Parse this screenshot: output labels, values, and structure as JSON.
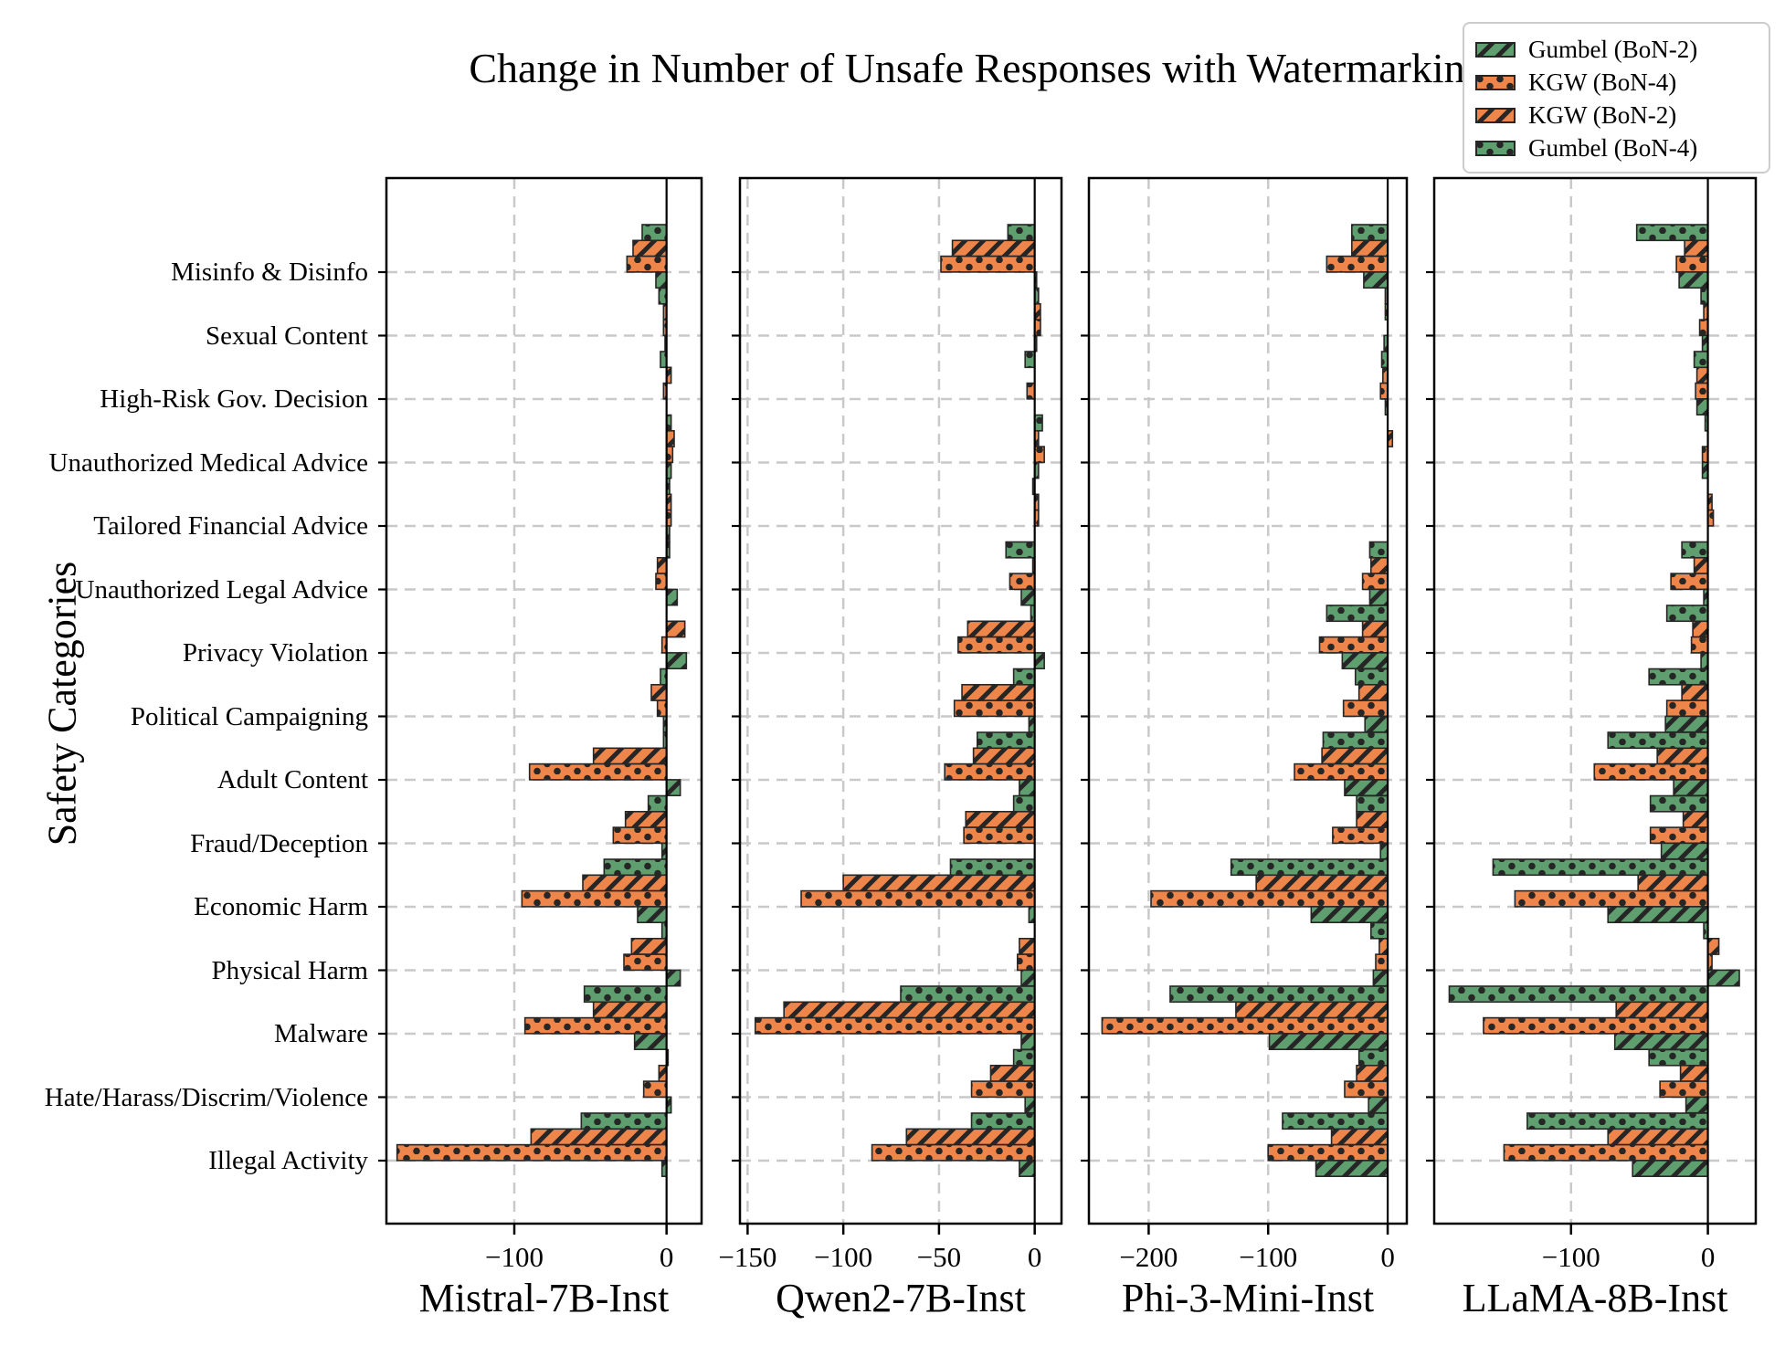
{
  "title_note": "all visible text lives here",
  "chart_data": {
    "type": "bar",
    "orientation": "horizontal",
    "title": "Change in Number of Unsafe Responses with Watermarking",
    "ylabel": "Safety Categories",
    "grid": true,
    "legend_position": "upper right",
    "categories": [
      "Misinfo & Disinfo",
      "Sexual Content",
      "High-Risk Gov. Decision",
      "Unauthorized Medical Advice",
      "Tailored Financial Advice",
      "Unauthorized Legal Advice",
      "Privacy Violation",
      "Political Campaigning",
      "Adult Content",
      "Fraud/Deception",
      "Economic Harm",
      "Physical Harm",
      "Malware",
      "Hate/Harass/Discrim/Violence",
      "Illegal Activity"
    ],
    "legend_items": [
      {
        "label": "Gumbel (BoN-2)",
        "color": "#5f9e6e",
        "hatch": "/"
      },
      {
        "label": "KGW (BoN-4)",
        "color": "#ee854a",
        "hatch": "."
      },
      {
        "label": "KGW (BoN-2)",
        "color": "#ee854a",
        "hatch": "/"
      },
      {
        "label": "Gumbel (BoN-4)",
        "color": "#5f9e6e",
        "hatch": "."
      }
    ],
    "series_draw_order": [
      "Gumbel (BoN-4)",
      "KGW (BoN-2)",
      "KGW (BoN-4)",
      "Gumbel (BoN-2)"
    ],
    "series_styles": {
      "Gumbel (BoN-4)": {
        "color": "#5f9e6e",
        "hatch": "."
      },
      "KGW (BoN-2)": {
        "color": "#ee854a",
        "hatch": "/"
      },
      "KGW (BoN-4)": {
        "color": "#ee854a",
        "hatch": "."
      },
      "Gumbel (BoN-2)": {
        "color": "#5f9e6e",
        "hatch": "/"
      }
    },
    "subplots": [
      {
        "model": "Mistral-7B-Inst",
        "xlim": [
          -184,
          23
        ],
        "xticks": [
          -100,
          0
        ],
        "xtick_labels": [
          "−100",
          "0"
        ],
        "series": {
          "Gumbel (BoN-4)": [
            -16,
            -5,
            -4,
            3,
            2,
            2,
            0,
            -4,
            -2,
            -12,
            -41,
            -3,
            -54,
            1,
            -56
          ],
          "KGW (BoN-2)": [
            -22,
            -2,
            3,
            5,
            3,
            -6,
            12,
            -10,
            -48,
            -27,
            -55,
            -23,
            -48,
            -5,
            -89
          ],
          "KGW (BoN-4)": [
            -26,
            -2,
            -2,
            4,
            3,
            -7,
            -3,
            -6,
            -90,
            -35,
            -95,
            -28,
            -93,
            -15,
            -177
          ],
          "Gumbel (BoN-2)": [
            -7,
            -1,
            0,
            3,
            2,
            7,
            13,
            -2,
            9,
            -3,
            -19,
            9,
            -21,
            3,
            -3
          ]
        }
      },
      {
        "model": "Qwen2-7B-Inst",
        "xlim": [
          -154,
          14
        ],
        "xticks": [
          -150,
          -100,
          -50,
          0
        ],
        "xtick_labels": [
          "−150",
          "−100",
          "−50",
          "0"
        ],
        "series": {
          "Gumbel (BoN-4)": [
            -14,
            2,
            -5,
            4,
            -1,
            -15,
            -2,
            -11,
            -30,
            -11,
            -44,
            0,
            -70,
            -11,
            -33
          ],
          "KGW (BoN-2)": [
            -43,
            3,
            0,
            2,
            2,
            -1,
            -35,
            -38,
            -32,
            -36,
            -100,
            -8,
            -131,
            -23,
            -67
          ],
          "KGW (BoN-4)": [
            -49,
            3,
            -4,
            5,
            2,
            -13,
            -40,
            -42,
            -47,
            -37,
            -122,
            -9,
            -146,
            -33,
            -85
          ],
          "Gumbel (BoN-2)": [
            1,
            1,
            0,
            2,
            0,
            -7,
            5,
            -3,
            -8,
            0,
            -3,
            -7,
            -7,
            -5,
            -8
          ]
        }
      },
      {
        "model": "Phi-3-Mini-Inst",
        "xlim": [
          -250,
          16
        ],
        "xticks": [
          -200,
          -100,
          0
        ],
        "xtick_labels": [
          "−200",
          "−100",
          "0"
        ],
        "series": {
          "Gumbel (BoN-4)": [
            -30,
            -2,
            -5,
            0,
            0,
            -15,
            -51,
            -27,
            -54,
            -26,
            -131,
            -14,
            -182,
            -24,
            -88
          ],
          "KGW (BoN-2)": [
            -30,
            -2,
            -4,
            4,
            0,
            -14,
            -21,
            -24,
            -55,
            -26,
            -110,
            -7,
            -127,
            -26,
            -47
          ],
          "KGW (BoN-4)": [
            -51,
            0,
            -6,
            0,
            0,
            -21,
            -57,
            -37,
            -78,
            -46,
            -198,
            -10,
            -239,
            -36,
            -100
          ],
          "Gumbel (BoN-2)": [
            -20,
            -3,
            -2,
            0,
            0,
            -15,
            -38,
            -19,
            -36,
            -6,
            -64,
            -12,
            -99,
            -16,
            -60
          ]
        }
      },
      {
        "model": "LLaMA-8B-Inst",
        "xlim": [
          -200,
          35
        ],
        "xticks": [
          -100,
          0
        ],
        "xtick_labels": [
          "−100",
          "0"
        ],
        "series": {
          "Gumbel (BoN-4)": [
            -52,
            -5,
            -10,
            -2,
            0,
            -19,
            -30,
            -43,
            -73,
            -42,
            -157,
            -3,
            -189,
            -43,
            -132
          ],
          "KGW (BoN-2)": [
            -17,
            -3,
            -8,
            0,
            3,
            -10,
            -11,
            -19,
            -37,
            -18,
            -51,
            8,
            -67,
            -20,
            -73
          ],
          "KGW (BoN-4)": [
            -23,
            -6,
            -9,
            -4,
            4,
            -27,
            -12,
            -30,
            -83,
            -42,
            -141,
            3,
            -164,
            -35,
            -149
          ],
          "Gumbel (BoN-2)": [
            -21,
            -4,
            -8,
            -4,
            0,
            -3,
            -5,
            -31,
            -25,
            -34,
            -73,
            23,
            -68,
            -16,
            -55
          ]
        }
      }
    ],
    "colors": {
      "green": "#5f9e6e",
      "orange": "#ee854a",
      "bar_edge": "#262626",
      "grid": "#c9c9c9",
      "spine": "#000000"
    }
  }
}
